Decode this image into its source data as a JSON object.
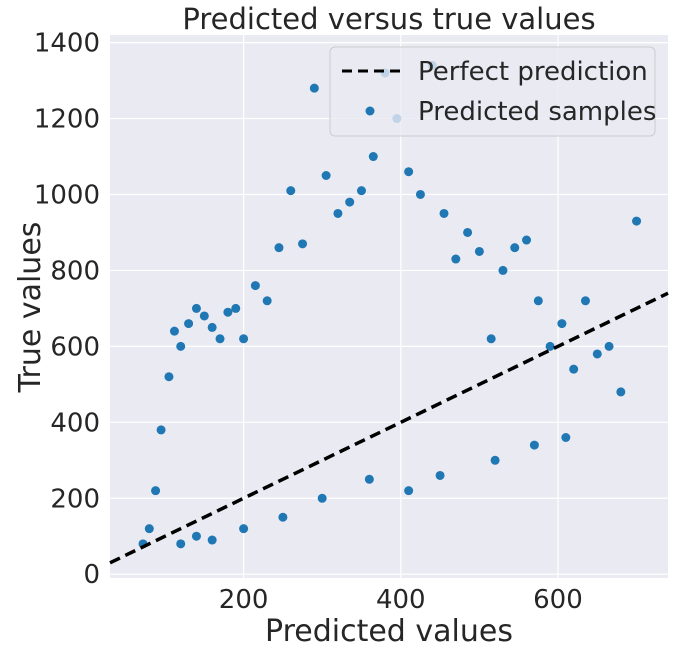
{
  "chart_data": {
    "type": "scatter",
    "title": "Predicted versus true values",
    "xlabel": "Predicted values",
    "ylabel": "True values",
    "xlim": [
      30,
      740
    ],
    "ylim": [
      -10,
      1420
    ],
    "x_ticks": [
      200,
      400,
      600
    ],
    "y_ticks": [
      0,
      200,
      400,
      600,
      800,
      1000,
      1200,
      1400
    ],
    "x_tick_labels": [
      "200",
      "400",
      "600"
    ],
    "y_tick_labels": [
      "0",
      "200",
      "400",
      "600",
      "800",
      "1000",
      "1200",
      "1400"
    ],
    "grid": true,
    "legend_position": "top-right",
    "colors": {
      "background": "#eaeaf2",
      "grid": "#ffffff",
      "points": "#1f77b4",
      "line": "#000000"
    },
    "series": [
      {
        "name": "Perfect prediction",
        "kind": "line",
        "style": "dashed",
        "x": [
          30,
          740
        ],
        "y": [
          30,
          740
        ]
      },
      {
        "name": "Predicted samples",
        "kind": "scatter",
        "x": [
          72,
          80,
          88,
          95,
          105,
          112,
          120,
          130,
          140,
          150,
          160,
          170,
          180,
          190,
          200,
          215,
          230,
          245,
          260,
          275,
          290,
          305,
          320,
          335,
          350,
          365,
          380,
          395,
          410,
          425,
          440,
          455,
          470,
          485,
          500,
          515,
          530,
          545,
          560,
          575,
          590,
          605,
          620,
          635,
          650,
          665,
          680,
          700,
          120,
          140,
          160,
          200,
          250,
          300,
          360,
          410,
          450,
          520,
          570,
          610
        ],
        "y": [
          80,
          120,
          220,
          380,
          520,
          640,
          600,
          660,
          700,
          680,
          650,
          620,
          690,
          700,
          620,
          760,
          720,
          860,
          1010,
          870,
          1280,
          1050,
          950,
          980,
          1010,
          1100,
          1320,
          1200,
          1060,
          1000,
          1340,
          950,
          830,
          900,
          850,
          620,
          800,
          860,
          880,
          720,
          600,
          660,
          540,
          720,
          580,
          600,
          480,
          930,
          80,
          100,
          90,
          120,
          150,
          200,
          250,
          220,
          260,
          300,
          340,
          360
        ]
      }
    ]
  }
}
